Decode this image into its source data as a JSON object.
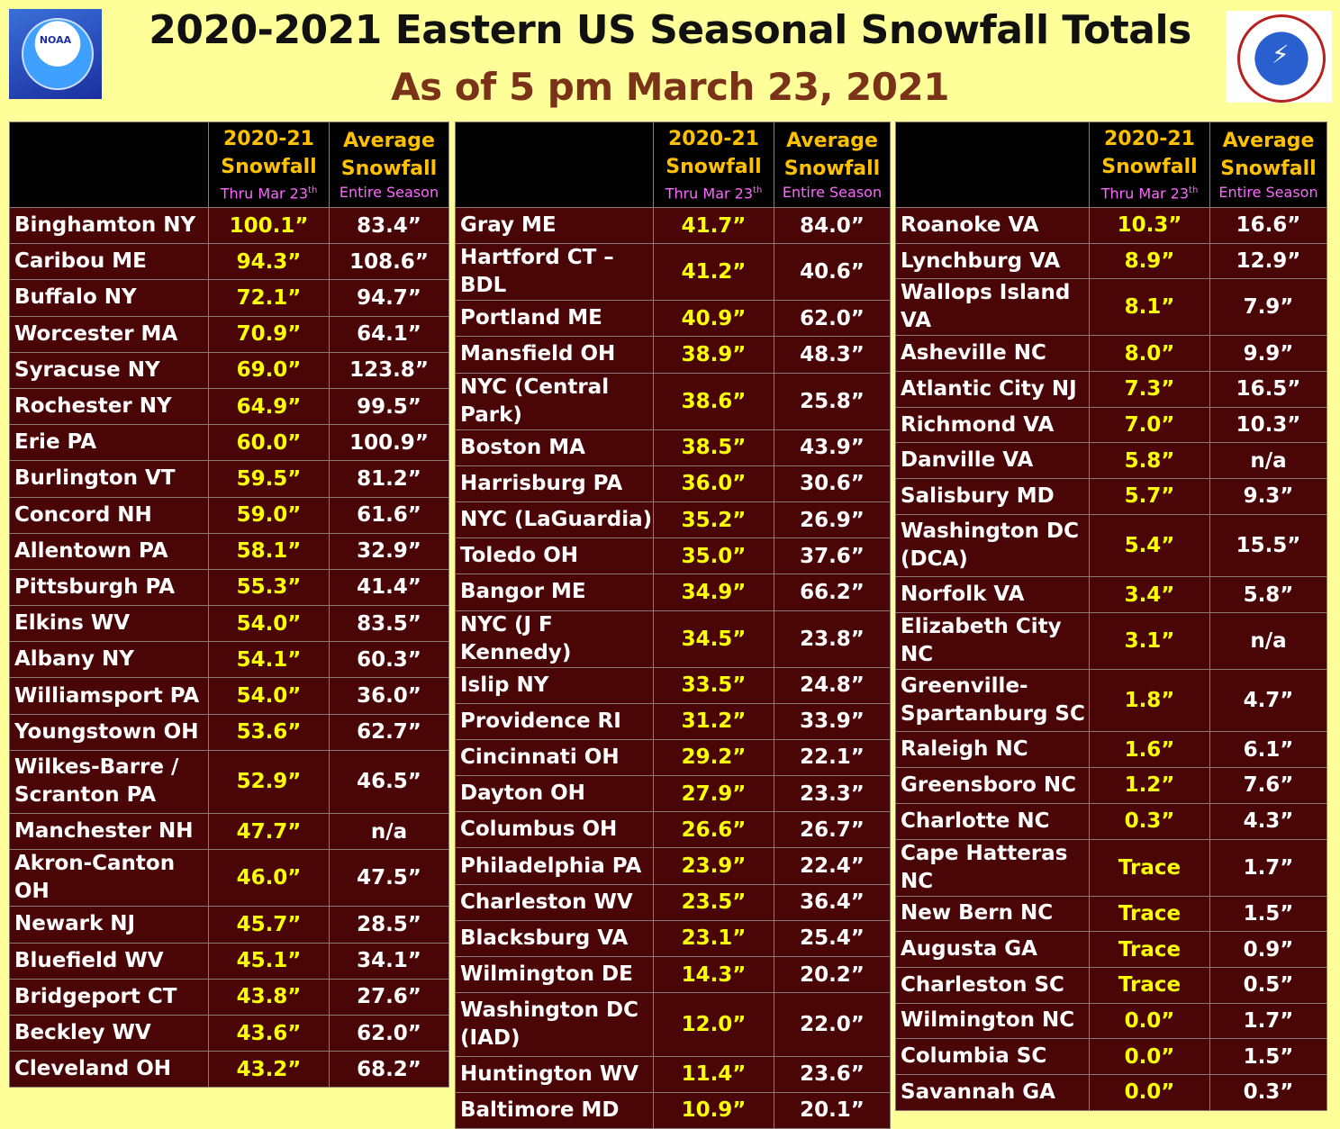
{
  "header": {
    "title": "2020-2021 Eastern US Seasonal Snowfall Totals",
    "subtitle": "As of 5 pm March 23, 2021"
  },
  "logos": {
    "left": "NOAA",
    "right": "National Weather Service"
  },
  "colors": {
    "background": "#FFFF99",
    "table_bg": "#4A0606",
    "current_value": "#FFFF00",
    "header_label": "#FFC000",
    "header_sub": "#FF66FF"
  },
  "column_headers": {
    "current": {
      "line1": "2020-21",
      "line2": "Snowfall",
      "sub": "Thru Mar 23",
      "sup": "th"
    },
    "average": {
      "line1": "Average",
      "line2": "Snowfall",
      "sub": "Entire Season"
    }
  },
  "tables": [
    {
      "rows": [
        {
          "city": "Binghamton NY",
          "current": "100.1”",
          "average": "83.4”"
        },
        {
          "city": "Caribou ME",
          "current": "94.3”",
          "average": "108.6”"
        },
        {
          "city": "Buffalo NY",
          "current": "72.1”",
          "average": "94.7”"
        },
        {
          "city": "Worcester MA",
          "current": "70.9”",
          "average": "64.1”"
        },
        {
          "city": "Syracuse NY",
          "current": "69.0”",
          "average": "123.8”"
        },
        {
          "city": "Rochester NY",
          "current": "64.9”",
          "average": "99.5”"
        },
        {
          "city": "Erie PA",
          "current": "60.0”",
          "average": "100.9”"
        },
        {
          "city": "Burlington VT",
          "current": "59.5”",
          "average": "81.2”"
        },
        {
          "city": "Concord NH",
          "current": "59.0”",
          "average": "61.6”"
        },
        {
          "city": "Allentown PA",
          "current": "58.1”",
          "average": "32.9”"
        },
        {
          "city": "Pittsburgh PA",
          "current": "55.3”",
          "average": "41.4”"
        },
        {
          "city": "Elkins WV",
          "current": "54.0”",
          "average": "83.5”"
        },
        {
          "city": "Albany NY",
          "current": "54.1”",
          "average": "60.3”"
        },
        {
          "city": "Williamsport PA",
          "current": "54.0”",
          "average": "36.0”"
        },
        {
          "city": "Youngstown OH",
          "current": "53.6”",
          "average": "62.7”"
        },
        {
          "city": "Wilkes-Barre / Scranton PA",
          "current": "52.9”",
          "average": "46.5”",
          "tall": true
        },
        {
          "city": "Manchester NH",
          "current": "47.7”",
          "average": "n/a"
        },
        {
          "city": "Akron-Canton OH",
          "current": "46.0”",
          "average": "47.5”"
        },
        {
          "city": "Newark NJ",
          "current": "45.7”",
          "average": "28.5”"
        },
        {
          "city": "Bluefield WV",
          "current": "45.1”",
          "average": "34.1”"
        },
        {
          "city": "Bridgeport CT",
          "current": "43.8”",
          "average": "27.6”"
        },
        {
          "city": "Beckley WV",
          "current": "43.6”",
          "average": "62.0”"
        },
        {
          "city": "Cleveland OH",
          "current": "43.2”",
          "average": "68.2”"
        }
      ]
    },
    {
      "rows": [
        {
          "city": "Gray ME",
          "current": "41.7”",
          "average": "84.0”"
        },
        {
          "city": "Hartford CT – BDL",
          "current": "41.2”",
          "average": "40.6”"
        },
        {
          "city": "Portland ME",
          "current": "40.9”",
          "average": "62.0”"
        },
        {
          "city": "Mansfield OH",
          "current": "38.9”",
          "average": "48.3”"
        },
        {
          "city": "NYC (Central Park)",
          "current": "38.6”",
          "average": "25.8”"
        },
        {
          "city": "Boston MA",
          "current": "38.5”",
          "average": "43.9”"
        },
        {
          "city": "Harrisburg PA",
          "current": "36.0”",
          "average": "30.6”"
        },
        {
          "city": "NYC (LaGuardia)",
          "current": "35.2”",
          "average": "26.9”"
        },
        {
          "city": "Toledo OH",
          "current": "35.0”",
          "average": "37.6”"
        },
        {
          "city": "Bangor ME",
          "current": "34.9”",
          "average": "66.2”"
        },
        {
          "city": "NYC (J F Kennedy)",
          "current": "34.5”",
          "average": "23.8”"
        },
        {
          "city": "Islip NY",
          "current": "33.5”",
          "average": "24.8”"
        },
        {
          "city": "Providence RI",
          "current": "31.2”",
          "average": "33.9”"
        },
        {
          "city": "Cincinnati OH",
          "current": "29.2”",
          "average": "22.1”"
        },
        {
          "city": "Dayton OH",
          "current": "27.9”",
          "average": "23.3”"
        },
        {
          "city": "Columbus OH",
          "current": "26.6”",
          "average": "26.7”"
        },
        {
          "city": "Philadelphia PA",
          "current": "23.9”",
          "average": "22.4”"
        },
        {
          "city": "Charleston WV",
          "current": "23.5”",
          "average": "36.4”"
        },
        {
          "city": "Blacksburg VA",
          "current": "23.1”",
          "average": "25.4”"
        },
        {
          "city": "Wilmington DE",
          "current": "14.3”",
          "average": "20.2”"
        },
        {
          "city": "Washington DC (IAD)",
          "current": "12.0”",
          "average": "22.0”",
          "tall": true
        },
        {
          "city": "Huntington WV",
          "current": "11.4”",
          "average": "23.6”"
        },
        {
          "city": "Baltimore MD",
          "current": "10.9”",
          "average": "20.1”"
        }
      ]
    },
    {
      "rows": [
        {
          "city": "Roanoke VA",
          "current": "10.3”",
          "average": "16.6”"
        },
        {
          "city": "Lynchburg VA",
          "current": "8.9”",
          "average": "12.9”"
        },
        {
          "city": "Wallops Island VA",
          "current": "8.1”",
          "average": "7.9”"
        },
        {
          "city": "Asheville NC",
          "current": "8.0”",
          "average": "9.9”"
        },
        {
          "city": "Atlantic City NJ",
          "current": "7.3”",
          "average": "16.5”"
        },
        {
          "city": "Richmond VA",
          "current": "7.0”",
          "average": "10.3”"
        },
        {
          "city": "Danville VA",
          "current": "5.8”",
          "average": "n/a"
        },
        {
          "city": "Salisbury MD",
          "current": "5.7”",
          "average": "9.3”"
        },
        {
          "city": "Washington DC (DCA)",
          "current": "5.4”",
          "average": "15.5”",
          "tall": true
        },
        {
          "city": "Norfolk VA",
          "current": "3.4”",
          "average": "5.8”"
        },
        {
          "city": "Elizabeth City NC",
          "current": "3.1”",
          "average": "n/a"
        },
        {
          "city": "Greenville-Spartanburg SC",
          "current": "1.8”",
          "average": "4.7”",
          "tall": true
        },
        {
          "city": "Raleigh NC",
          "current": "1.6”",
          "average": "6.1”"
        },
        {
          "city": "Greensboro NC",
          "current": "1.2”",
          "average": "7.6”"
        },
        {
          "city": "Charlotte NC",
          "current": "0.3”",
          "average": "4.3”"
        },
        {
          "city": "Cape Hatteras NC",
          "current": "Trace",
          "average": "1.7”"
        },
        {
          "city": "New Bern NC",
          "current": "Trace",
          "average": "1.5”"
        },
        {
          "city": "Augusta GA",
          "current": "Trace",
          "average": "0.9”"
        },
        {
          "city": "Charleston SC",
          "current": "Trace",
          "average": "0.5”"
        },
        {
          "city": "Wilmington NC",
          "current": "0.0”",
          "average": "1.7”"
        },
        {
          "city": "Columbia SC",
          "current": "0.0”",
          "average": "1.5”"
        },
        {
          "city": "Savannah GA",
          "current": "0.0”",
          "average": "0.3”"
        }
      ]
    }
  ]
}
